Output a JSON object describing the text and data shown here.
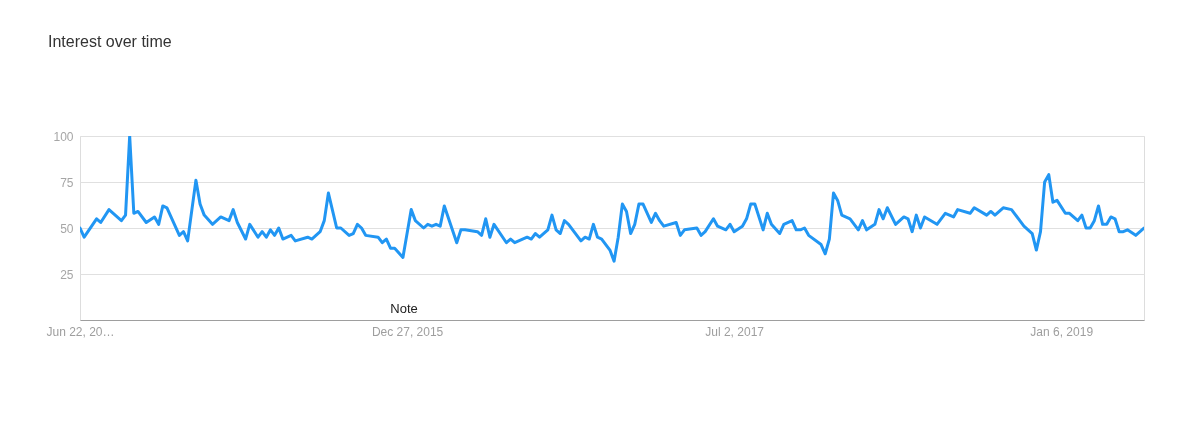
{
  "chart_data": {
    "type": "line",
    "title": "Interest over time",
    "x": [
      "2014-06-22",
      "2014-06-29",
      "2014-07-20",
      "2014-07-27",
      "2014-08-10",
      "2014-08-31",
      "2014-09-07",
      "2014-09-14",
      "2014-09-21",
      "2014-09-28",
      "2014-10-12",
      "2014-10-26",
      "2014-11-02",
      "2014-11-09",
      "2014-11-16",
      "2014-12-07",
      "2014-12-14",
      "2014-12-21",
      "2015-01-04",
      "2015-01-11",
      "2015-01-18",
      "2015-02-01",
      "2015-02-15",
      "2015-03-01",
      "2015-03-08",
      "2015-03-15",
      "2015-03-29",
      "2015-04-05",
      "2015-04-19",
      "2015-04-26",
      "2015-05-03",
      "2015-05-10",
      "2015-05-17",
      "2015-05-24",
      "2015-05-31",
      "2015-06-14",
      "2015-06-21",
      "2015-07-12",
      "2015-07-19",
      "2015-08-02",
      "2015-08-09",
      "2015-08-16",
      "2015-08-30",
      "2015-09-06",
      "2015-09-20",
      "2015-09-27",
      "2015-10-04",
      "2015-10-11",
      "2015-10-18",
      "2015-11-08",
      "2015-11-15",
      "2015-11-22",
      "2015-11-29",
      "2015-12-06",
      "2015-12-20",
      "2016-01-03",
      "2016-01-10",
      "2016-01-24",
      "2016-01-31",
      "2016-02-07",
      "2016-02-14",
      "2016-02-21",
      "2016-02-28",
      "2016-03-20",
      "2016-03-27",
      "2016-04-03",
      "2016-04-24",
      "2016-05-01",
      "2016-05-08",
      "2016-05-15",
      "2016-05-22",
      "2016-06-12",
      "2016-06-19",
      "2016-06-26",
      "2016-07-17",
      "2016-07-24",
      "2016-07-31",
      "2016-08-07",
      "2016-08-21",
      "2016-08-28",
      "2016-09-04",
      "2016-09-11",
      "2016-09-18",
      "2016-09-25",
      "2016-10-16",
      "2016-10-23",
      "2016-10-30",
      "2016-11-06",
      "2016-11-13",
      "2016-11-20",
      "2016-12-04",
      "2016-12-11",
      "2016-12-18",
      "2016-12-25",
      "2017-01-01",
      "2017-01-08",
      "2017-01-15",
      "2017-01-22",
      "2017-01-29",
      "2017-02-12",
      "2017-02-19",
      "2017-02-26",
      "2017-03-05",
      "2017-03-26",
      "2017-04-02",
      "2017-04-09",
      "2017-04-30",
      "2017-05-07",
      "2017-05-14",
      "2017-05-28",
      "2017-06-04",
      "2017-06-18",
      "2017-06-25",
      "2017-07-02",
      "2017-07-16",
      "2017-07-23",
      "2017-07-30",
      "2017-08-06",
      "2017-08-20",
      "2017-08-27",
      "2017-09-03",
      "2017-09-17",
      "2017-09-24",
      "2017-10-08",
      "2017-10-15",
      "2017-10-22",
      "2017-10-29",
      "2017-11-05",
      "2017-11-26",
      "2017-12-03",
      "2017-12-10",
      "2017-12-17",
      "2017-12-24",
      "2017-12-31",
      "2018-01-14",
      "2018-01-28",
      "2018-02-04",
      "2018-02-11",
      "2018-02-25",
      "2018-03-04",
      "2018-03-11",
      "2018-03-18",
      "2018-04-01",
      "2018-04-15",
      "2018-04-22",
      "2018-04-29",
      "2018-05-06",
      "2018-05-13",
      "2018-05-20",
      "2018-06-10",
      "2018-06-24",
      "2018-07-08",
      "2018-07-15",
      "2018-08-05",
      "2018-08-12",
      "2018-09-02",
      "2018-09-09",
      "2018-09-16",
      "2018-09-30",
      "2018-10-14",
      "2018-11-04",
      "2018-11-18",
      "2018-11-25",
      "2018-12-02",
      "2018-12-09",
      "2018-12-16",
      "2018-12-23",
      "2018-12-30",
      "2019-01-13",
      "2019-01-20",
      "2019-02-03",
      "2019-02-10",
      "2019-02-17",
      "2019-02-24",
      "2019-03-03",
      "2019-03-10",
      "2019-03-17",
      "2019-03-24",
      "2019-03-31",
      "2019-04-07",
      "2019-04-14",
      "2019-04-21",
      "2019-04-28",
      "2019-05-12",
      "2019-05-26"
    ],
    "series": [
      {
        "color": "#2196f3",
        "values": [
          50,
          45,
          55,
          53,
          60,
          54,
          57,
          100,
          58,
          59,
          53,
          56,
          52,
          62,
          61,
          46,
          48,
          43,
          76,
          63,
          57,
          52,
          56,
          54,
          60,
          53,
          44,
          52,
          45,
          48,
          45,
          49,
          46,
          50,
          44,
          46,
          43,
          45,
          44,
          48,
          54,
          69,
          50,
          50,
          46,
          47,
          52,
          50,
          46,
          45,
          42,
          44,
          39,
          39,
          34,
          60,
          54,
          50,
          52,
          51,
          52,
          51,
          62,
          42,
          49,
          49,
          48,
          46,
          55,
          45,
          52,
          42,
          44,
          42,
          45,
          44,
          47,
          45,
          49,
          57,
          49,
          47,
          54,
          52,
          43,
          45,
          44,
          52,
          45,
          44,
          38,
          32,
          45,
          63,
          59,
          47,
          52,
          63,
          63,
          53,
          58,
          54,
          51,
          53,
          46,
          49,
          50,
          46,
          48,
          55,
          51,
          49,
          52,
          48,
          51,
          55,
          63,
          63,
          49,
          58,
          52,
          47,
          52,
          54,
          49,
          49,
          50,
          46,
          41,
          36,
          44,
          69,
          65,
          57,
          55,
          49,
          54,
          49,
          52,
          60,
          55,
          61,
          52,
          56,
          55,
          48,
          57,
          50,
          56,
          52,
          58,
          56,
          60,
          58,
          61,
          57,
          59,
          57,
          61,
          60,
          51,
          47,
          38,
          48,
          75,
          79,
          64,
          65,
          58,
          58,
          54,
          57,
          50,
          50,
          54,
          62,
          52,
          52,
          56,
          55,
          48,
          48,
          49,
          46,
          50
        ]
      }
    ],
    "xlim": [
      "2014-06-22",
      "2019-05-26"
    ],
    "xticks": [
      {
        "value": "2014-06-22",
        "label": "Jun 22, 20…"
      },
      {
        "value": "2015-12-27",
        "label": "Dec 27, 2015"
      },
      {
        "value": "2017-07-02",
        "label": "Jul 2, 2017"
      },
      {
        "value": "2019-01-06",
        "label": "Jan 6, 2019"
      }
    ],
    "ylim": [
      0,
      100
    ],
    "yticks": [
      25,
      50,
      75,
      100
    ],
    "grid": "y",
    "marker": "none",
    "line_style": "solid",
    "annotations": [
      "Note"
    ]
  }
}
